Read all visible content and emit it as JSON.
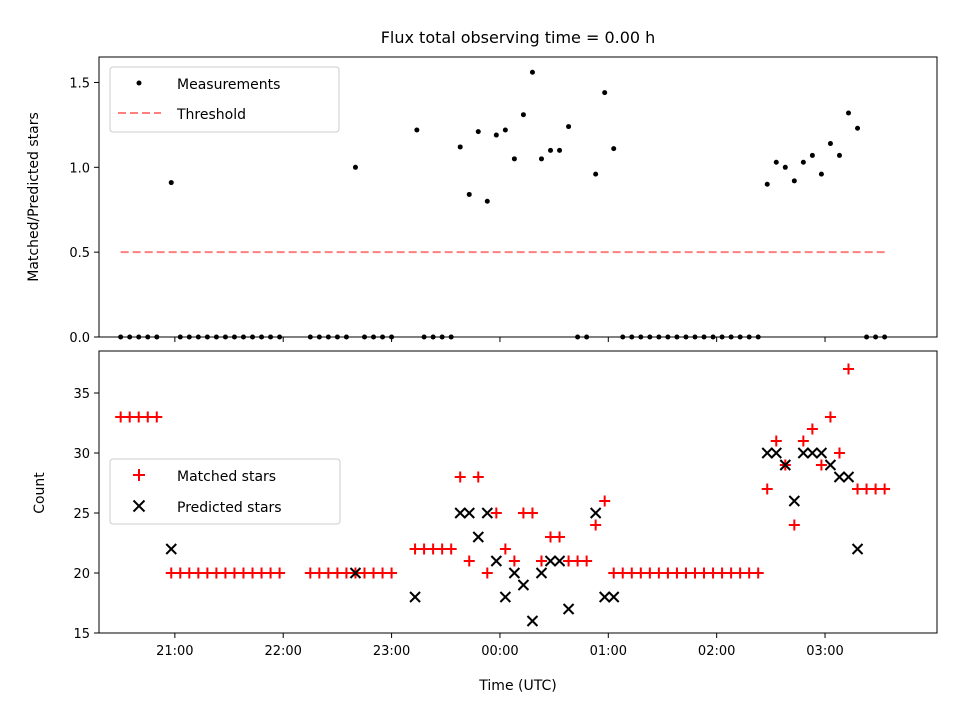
{
  "chart_data": [
    {
      "type": "scatter",
      "title": "Flux total observing time = 0.00 h",
      "xlabel": "",
      "ylabel": "Matched/Predicted stars",
      "xlim": [
        "2023-01-01T20:18",
        "2023-01-02T04:02"
      ],
      "ylim": [
        0,
        1.65
      ],
      "yticks": [
        0.0,
        0.5,
        1.0,
        1.5
      ],
      "ytick_labels": [
        "0.0",
        "0.5",
        "1.0",
        "1.5"
      ],
      "xticks": [
        "2023-01-01T21:00",
        "2023-01-01T22:00",
        "2023-01-01T23:00",
        "2023-01-02T00:00",
        "2023-01-02T01:00",
        "2023-01-02T02:00",
        "2023-01-02T03:00"
      ],
      "xtick_labels": [
        "",
        "",
        "",
        "",
        "",
        "",
        ""
      ],
      "legend": {
        "placement": "upper-left",
        "entries": [
          "Measurements",
          "Threshold"
        ]
      },
      "grid": false,
      "series": [
        {
          "name": "Measurements",
          "marker": "dot",
          "color": "#000000",
          "points": [
            [
              "2023-01-01T20:30",
              0
            ],
            [
              "2023-01-01T20:35",
              0
            ],
            [
              "2023-01-01T20:40",
              0
            ],
            [
              "2023-01-01T20:45",
              0
            ],
            [
              "2023-01-01T20:50",
              0
            ],
            [
              "2023-01-01T20:58",
              0.91
            ],
            [
              "2023-01-01T21:03",
              0
            ],
            [
              "2023-01-01T21:08",
              0
            ],
            [
              "2023-01-01T21:13",
              0
            ],
            [
              "2023-01-01T21:18",
              0
            ],
            [
              "2023-01-01T21:23",
              0
            ],
            [
              "2023-01-01T21:28",
              0
            ],
            [
              "2023-01-01T21:33",
              0
            ],
            [
              "2023-01-01T21:38",
              0
            ],
            [
              "2023-01-01T21:43",
              0
            ],
            [
              "2023-01-01T21:48",
              0
            ],
            [
              "2023-01-01T21:53",
              0
            ],
            [
              "2023-01-01T21:58",
              0
            ],
            [
              "2023-01-01T22:15",
              0
            ],
            [
              "2023-01-01T22:20",
              0
            ],
            [
              "2023-01-01T22:25",
              0
            ],
            [
              "2023-01-01T22:30",
              0
            ],
            [
              "2023-01-01T22:35",
              0
            ],
            [
              "2023-01-01T22:40",
              1.0
            ],
            [
              "2023-01-01T22:45",
              0
            ],
            [
              "2023-01-01T22:50",
              0
            ],
            [
              "2023-01-01T22:55",
              0
            ],
            [
              "2023-01-01T23:00",
              0
            ],
            [
              "2023-01-01T23:14",
              1.22
            ],
            [
              "2023-01-01T23:18",
              0
            ],
            [
              "2023-01-01T23:23",
              0
            ],
            [
              "2023-01-01T23:28",
              0
            ],
            [
              "2023-01-01T23:33",
              0
            ],
            [
              "2023-01-01T23:38",
              1.12
            ],
            [
              "2023-01-01T23:43",
              0.84
            ],
            [
              "2023-01-01T23:48",
              1.21
            ],
            [
              "2023-01-01T23:53",
              0.8
            ],
            [
              "2023-01-01T23:58",
              1.19
            ],
            [
              "2023-01-02T00:03",
              1.22
            ],
            [
              "2023-01-02T00:08",
              1.05
            ],
            [
              "2023-01-02T00:13",
              1.31
            ],
            [
              "2023-01-02T00:18",
              1.56
            ],
            [
              "2023-01-02T00:23",
              1.05
            ],
            [
              "2023-01-02T00:28",
              1.1
            ],
            [
              "2023-01-02T00:33",
              1.1
            ],
            [
              "2023-01-02T00:38",
              1.24
            ],
            [
              "2023-01-02T00:43",
              0
            ],
            [
              "2023-01-02T00:48",
              0
            ],
            [
              "2023-01-02T00:53",
              0.96
            ],
            [
              "2023-01-02T00:58",
              1.44
            ],
            [
              "2023-01-02T01:03",
              1.11
            ],
            [
              "2023-01-02T01:08",
              0
            ],
            [
              "2023-01-02T01:13",
              0
            ],
            [
              "2023-01-02T01:18",
              0
            ],
            [
              "2023-01-02T01:23",
              0
            ],
            [
              "2023-01-02T01:28",
              0
            ],
            [
              "2023-01-02T01:33",
              0
            ],
            [
              "2023-01-02T01:38",
              0
            ],
            [
              "2023-01-02T01:43",
              0
            ],
            [
              "2023-01-02T01:48",
              0
            ],
            [
              "2023-01-02T01:53",
              0
            ],
            [
              "2023-01-02T01:58",
              0
            ],
            [
              "2023-01-02T02:03",
              0
            ],
            [
              "2023-01-02T02:08",
              0
            ],
            [
              "2023-01-02T02:13",
              0
            ],
            [
              "2023-01-02T02:18",
              0
            ],
            [
              "2023-01-02T02:23",
              0
            ],
            [
              "2023-01-02T02:28",
              0.9
            ],
            [
              "2023-01-02T02:33",
              1.03
            ],
            [
              "2023-01-02T02:38",
              1.0
            ],
            [
              "2023-01-02T02:43",
              0.92
            ],
            [
              "2023-01-02T02:48",
              1.03
            ],
            [
              "2023-01-02T02:53",
              1.07
            ],
            [
              "2023-01-02T02:58",
              0.96
            ],
            [
              "2023-01-02T03:03",
              1.14
            ],
            [
              "2023-01-02T03:08",
              1.07
            ],
            [
              "2023-01-02T03:13",
              1.32
            ],
            [
              "2023-01-02T03:18",
              1.23
            ],
            [
              "2023-01-02T03:23",
              0
            ],
            [
              "2023-01-02T03:28",
              0
            ],
            [
              "2023-01-02T03:33",
              0
            ]
          ]
        },
        {
          "name": "Threshold",
          "type": "line",
          "style": "dashed",
          "color": "#ff7f7f",
          "points": [
            [
              "2023-01-01T20:30",
              0.5
            ],
            [
              "2023-01-02T03:33",
              0.5
            ]
          ]
        }
      ]
    },
    {
      "type": "scatter",
      "title": "",
      "xlabel": "Time (UTC)",
      "ylabel": "Count",
      "xlim": [
        "2023-01-01T20:18",
        "2023-01-02T04:02"
      ],
      "ylim": [
        15,
        38.5
      ],
      "yticks": [
        15,
        20,
        25,
        30,
        35
      ],
      "ytick_labels": [
        "15",
        "20",
        "25",
        "30",
        "35"
      ],
      "xticks": [
        "2023-01-01T21:00",
        "2023-01-01T22:00",
        "2023-01-01T23:00",
        "2023-01-02T00:00",
        "2023-01-02T01:00",
        "2023-01-02T02:00",
        "2023-01-02T03:00"
      ],
      "xtick_labels": [
        "21:00",
        "22:00",
        "23:00",
        "00:00",
        "01:00",
        "02:00",
        "03:00"
      ],
      "legend": {
        "placement": "center-left",
        "entries": [
          "Matched stars",
          "Predicted stars"
        ]
      },
      "grid": false,
      "series": [
        {
          "name": "Matched stars",
          "marker": "plus",
          "color": "#ff0000",
          "points": [
            [
              "2023-01-01T20:30",
              33
            ],
            [
              "2023-01-01T20:35",
              33
            ],
            [
              "2023-01-01T20:40",
              33
            ],
            [
              "2023-01-01T20:45",
              33
            ],
            [
              "2023-01-01T20:50",
              33
            ],
            [
              "2023-01-01T20:58",
              20
            ],
            [
              "2023-01-01T21:03",
              20
            ],
            [
              "2023-01-01T21:08",
              20
            ],
            [
              "2023-01-01T21:13",
              20
            ],
            [
              "2023-01-01T21:18",
              20
            ],
            [
              "2023-01-01T21:23",
              20
            ],
            [
              "2023-01-01T21:28",
              20
            ],
            [
              "2023-01-01T21:33",
              20
            ],
            [
              "2023-01-01T21:38",
              20
            ],
            [
              "2023-01-01T21:43",
              20
            ],
            [
              "2023-01-01T21:48",
              20
            ],
            [
              "2023-01-01T21:53",
              20
            ],
            [
              "2023-01-01T21:58",
              20
            ],
            [
              "2023-01-01T22:15",
              20
            ],
            [
              "2023-01-01T22:20",
              20
            ],
            [
              "2023-01-01T22:25",
              20
            ],
            [
              "2023-01-01T22:30",
              20
            ],
            [
              "2023-01-01T22:35",
              20
            ],
            [
              "2023-01-01T22:40",
              20
            ],
            [
              "2023-01-01T22:45",
              20
            ],
            [
              "2023-01-01T22:50",
              20
            ],
            [
              "2023-01-01T22:55",
              20
            ],
            [
              "2023-01-01T23:00",
              20
            ],
            [
              "2023-01-01T23:13",
              22
            ],
            [
              "2023-01-01T23:18",
              22
            ],
            [
              "2023-01-01T23:23",
              22
            ],
            [
              "2023-01-01T23:28",
              22
            ],
            [
              "2023-01-01T23:33",
              22
            ],
            [
              "2023-01-01T23:38",
              28
            ],
            [
              "2023-01-01T23:43",
              21
            ],
            [
              "2023-01-01T23:48",
              28
            ],
            [
              "2023-01-01T23:53",
              20
            ],
            [
              "2023-01-01T23:58",
              25
            ],
            [
              "2023-01-02T00:03",
              22
            ],
            [
              "2023-01-02T00:08",
              21
            ],
            [
              "2023-01-02T00:13",
              25
            ],
            [
              "2023-01-02T00:18",
              25
            ],
            [
              "2023-01-02T00:23",
              21
            ],
            [
              "2023-01-02T00:28",
              23
            ],
            [
              "2023-01-02T00:33",
              23
            ],
            [
              "2023-01-02T00:38",
              21
            ],
            [
              "2023-01-02T00:43",
              21
            ],
            [
              "2023-01-02T00:48",
              21
            ],
            [
              "2023-01-02T00:53",
              24
            ],
            [
              "2023-01-02T00:58",
              26
            ],
            [
              "2023-01-02T01:03",
              20
            ],
            [
              "2023-01-02T01:08",
              20
            ],
            [
              "2023-01-02T01:13",
              20
            ],
            [
              "2023-01-02T01:18",
              20
            ],
            [
              "2023-01-02T01:23",
              20
            ],
            [
              "2023-01-02T01:28",
              20
            ],
            [
              "2023-01-02T01:33",
              20
            ],
            [
              "2023-01-02T01:38",
              20
            ],
            [
              "2023-01-02T01:43",
              20
            ],
            [
              "2023-01-02T01:48",
              20
            ],
            [
              "2023-01-02T01:53",
              20
            ],
            [
              "2023-01-02T01:58",
              20
            ],
            [
              "2023-01-02T02:03",
              20
            ],
            [
              "2023-01-02T02:08",
              20
            ],
            [
              "2023-01-02T02:13",
              20
            ],
            [
              "2023-01-02T02:18",
              20
            ],
            [
              "2023-01-02T02:23",
              20
            ],
            [
              "2023-01-02T02:28",
              27
            ],
            [
              "2023-01-02T02:33",
              31
            ],
            [
              "2023-01-02T02:38",
              29
            ],
            [
              "2023-01-02T02:43",
              24
            ],
            [
              "2023-01-02T02:48",
              31
            ],
            [
              "2023-01-02T02:53",
              32
            ],
            [
              "2023-01-02T02:58",
              29
            ],
            [
              "2023-01-02T03:03",
              33
            ],
            [
              "2023-01-02T03:08",
              30
            ],
            [
              "2023-01-02T03:13",
              37
            ],
            [
              "2023-01-02T03:18",
              27
            ],
            [
              "2023-01-02T03:23",
              27
            ],
            [
              "2023-01-02T03:28",
              27
            ],
            [
              "2023-01-02T03:33",
              27
            ]
          ]
        },
        {
          "name": "Predicted stars",
          "marker": "x",
          "color": "#000000",
          "points": [
            [
              "2023-01-01T20:58",
              22
            ],
            [
              "2023-01-01T22:40",
              20
            ],
            [
              "2023-01-01T23:13",
              18
            ],
            [
              "2023-01-01T23:38",
              25
            ],
            [
              "2023-01-01T23:43",
              25
            ],
            [
              "2023-01-01T23:48",
              23
            ],
            [
              "2023-01-01T23:53",
              25
            ],
            [
              "2023-01-01T23:58",
              21
            ],
            [
              "2023-01-02T00:03",
              18
            ],
            [
              "2023-01-02T00:08",
              20
            ],
            [
              "2023-01-02T00:13",
              19
            ],
            [
              "2023-01-02T00:18",
              16
            ],
            [
              "2023-01-02T00:23",
              20
            ],
            [
              "2023-01-02T00:28",
              21
            ],
            [
              "2023-01-02T00:33",
              21
            ],
            [
              "2023-01-02T00:38",
              17
            ],
            [
              "2023-01-02T00:53",
              25
            ],
            [
              "2023-01-02T00:58",
              18
            ],
            [
              "2023-01-02T01:03",
              18
            ],
            [
              "2023-01-02T02:28",
              30
            ],
            [
              "2023-01-02T02:33",
              30
            ],
            [
              "2023-01-02T02:38",
              29
            ],
            [
              "2023-01-02T02:43",
              26
            ],
            [
              "2023-01-02T02:48",
              30
            ],
            [
              "2023-01-02T02:53",
              30
            ],
            [
              "2023-01-02T02:58",
              30
            ],
            [
              "2023-01-02T03:03",
              29
            ],
            [
              "2023-01-02T03:08",
              28
            ],
            [
              "2023-01-02T03:13",
              28
            ],
            [
              "2023-01-02T03:18",
              22
            ]
          ]
        }
      ]
    }
  ]
}
